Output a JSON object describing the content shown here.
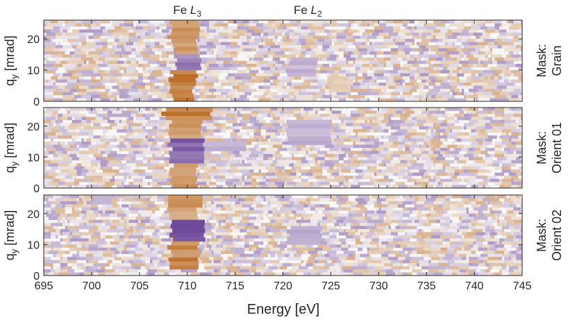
{
  "chart_data": {
    "type": "heatmap",
    "xlabel": "Energy [eV]",
    "x_unit": "eV",
    "xlim": [
      695,
      745
    ],
    "x_ticks": [
      695,
      700,
      705,
      710,
      715,
      720,
      725,
      730,
      735,
      740,
      745
    ],
    "ylabel_prefix": "q",
    "ylabel_sub": "y",
    "ylabel_suffix": " [mrad]",
    "ylim": [
      0,
      26
    ],
    "y_ticks": [
      0,
      10,
      20
    ],
    "colormap": {
      "positive": "#b35806",
      "neutral": "#f7f7f7",
      "negative": "#542788"
    },
    "peak_annotations": [
      {
        "element": "Fe",
        "edge": "L",
        "sub": "3",
        "energy": 710
      },
      {
        "element": "Fe",
        "edge": "L",
        "sub": "2",
        "energy": 722.6
      }
    ],
    "panels": [
      {
        "mask_line1": "Mask:",
        "mask_line2": "Grain",
        "features": [
          {
            "e0": 708.2,
            "e1": 711.2,
            "q0": 20,
            "q1": 26,
            "value": 0.7
          },
          {
            "e0": 708.5,
            "e1": 711.0,
            "q0": 15,
            "q1": 20,
            "value": 0.65
          },
          {
            "e0": 708.8,
            "e1": 711.4,
            "q0": 10,
            "q1": 15,
            "value": -0.6
          },
          {
            "e0": 708.3,
            "e1": 711.0,
            "q0": 5,
            "q1": 10,
            "value": 0.8
          },
          {
            "e0": 708.3,
            "e1": 710.6,
            "q0": 0,
            "q1": 5,
            "value": 0.85
          },
          {
            "e0": 720.5,
            "e1": 723.5,
            "q0": 8,
            "q1": 14,
            "value": -0.35
          },
          {
            "e0": 725.0,
            "e1": 727.0,
            "q0": 3,
            "q1": 8,
            "value": 0.3
          }
        ]
      },
      {
        "mask_line1": "Mask:",
        "mask_line2": "Orient 01",
        "features": [
          {
            "e0": 707.5,
            "e1": 712.5,
            "q0": 22,
            "q1": 26,
            "value": 0.8
          },
          {
            "e0": 708.2,
            "e1": 711.5,
            "q0": 16,
            "q1": 22,
            "value": 0.6
          },
          {
            "e0": 708.2,
            "e1": 711.8,
            "q0": 8,
            "q1": 16,
            "value": -0.8
          },
          {
            "e0": 708.3,
            "e1": 711.0,
            "q0": 0,
            "q1": 8,
            "value": 0.6
          },
          {
            "e0": 711.5,
            "e1": 716.0,
            "q0": 12,
            "q1": 15,
            "value": -0.35
          },
          {
            "e0": 720.5,
            "e1": 725.0,
            "q0": 14,
            "q1": 22,
            "value": -0.35
          }
        ]
      },
      {
        "mask_line1": "Mask:",
        "mask_line2": "Orient 02",
        "features": [
          {
            "e0": 707.8,
            "e1": 711.5,
            "q0": 22,
            "q1": 26,
            "value": 0.75
          },
          {
            "e0": 708.0,
            "e1": 711.0,
            "q0": 18,
            "q1": 22,
            "value": 0.55
          },
          {
            "e0": 708.3,
            "e1": 711.8,
            "q0": 11,
            "q1": 18,
            "value": -0.85
          },
          {
            "e0": 708.2,
            "e1": 711.2,
            "q0": 2,
            "q1": 11,
            "value": 0.75
          },
          {
            "e0": 720.5,
            "e1": 724.0,
            "q0": 10,
            "q1": 16,
            "value": -0.4
          },
          {
            "e0": 700.0,
            "e1": 702.0,
            "q0": 23,
            "q1": 26,
            "value": -0.35
          }
        ]
      }
    ]
  }
}
